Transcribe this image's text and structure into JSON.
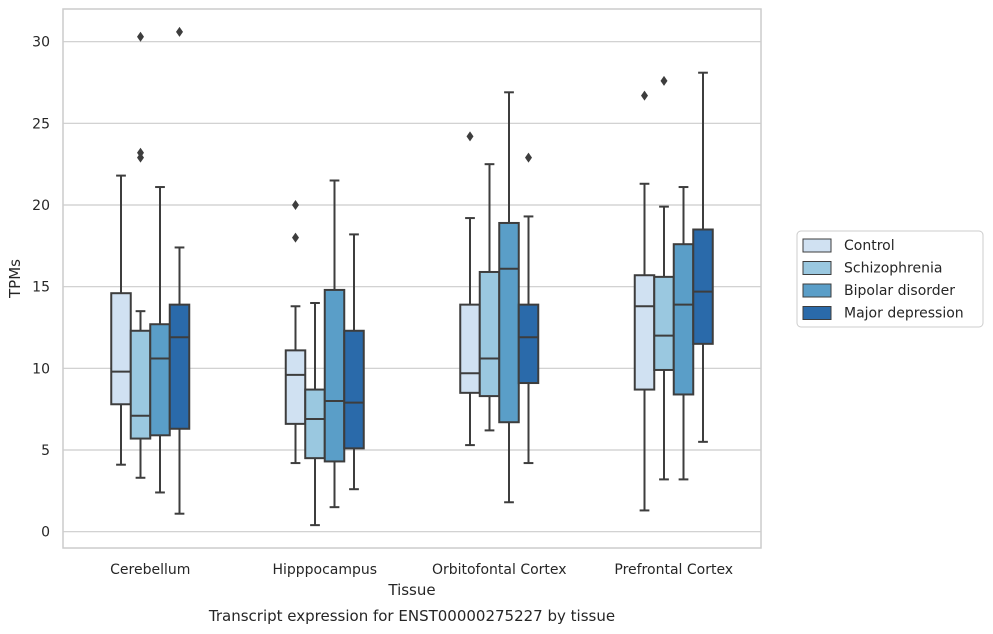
{
  "chart_data": {
    "type": "boxplot",
    "title": "",
    "caption": "Transcript expression for ENST00000275227 by tissue",
    "xlabel": "Tissue",
    "ylabel": "TPMs",
    "ylim": [
      -1,
      32
    ],
    "yticks": [
      0,
      5,
      10,
      15,
      20,
      25,
      30
    ],
    "grid": "horizontal",
    "legend_position": "right",
    "categories": [
      "Cerebellum",
      "Hipppocampus",
      "Orbitofontal Cortex",
      "Prefrontal Cortex"
    ],
    "series": [
      {
        "name": "Control",
        "color": "#d0e1f2",
        "boxes": [
          {
            "whislo": 4.1,
            "q1": 7.8,
            "med": 9.8,
            "q3": 14.6,
            "whishi": 21.8,
            "fliers": []
          },
          {
            "whislo": 4.2,
            "q1": 6.6,
            "med": 9.6,
            "q3": 11.1,
            "whishi": 13.8,
            "fliers": [
              18.0,
              20.0
            ]
          },
          {
            "whislo": 5.3,
            "q1": 8.5,
            "med": 9.7,
            "q3": 13.9,
            "whishi": 19.2,
            "fliers": [
              24.2
            ]
          },
          {
            "whislo": 1.3,
            "q1": 8.7,
            "med": 13.8,
            "q3": 15.7,
            "whishi": 21.3,
            "fliers": [
              26.7
            ]
          }
        ]
      },
      {
        "name": "Schizophrenia",
        "color": "#9ac8e0",
        "boxes": [
          {
            "whislo": 3.3,
            "q1": 5.7,
            "med": 7.1,
            "q3": 12.3,
            "whishi": 13.5,
            "fliers": [
              22.9,
              23.2,
              30.3
            ]
          },
          {
            "whislo": 0.4,
            "q1": 4.5,
            "med": 6.9,
            "q3": 8.7,
            "whishi": 14.0,
            "fliers": []
          },
          {
            "whislo": 6.2,
            "q1": 8.3,
            "med": 10.6,
            "q3": 15.9,
            "whishi": 22.5,
            "fliers": []
          },
          {
            "whislo": 3.2,
            "q1": 9.9,
            "med": 12.0,
            "q3": 15.6,
            "whishi": 19.9,
            "fliers": [
              27.6
            ]
          }
        ]
      },
      {
        "name": "Bipolar disorder",
        "color": "#5a9ec8",
        "boxes": [
          {
            "whislo": 2.4,
            "q1": 5.9,
            "med": 10.6,
            "q3": 12.7,
            "whishi": 21.1,
            "fliers": []
          },
          {
            "whislo": 1.5,
            "q1": 4.3,
            "med": 8.0,
            "q3": 14.8,
            "whishi": 21.5,
            "fliers": []
          },
          {
            "whislo": 1.8,
            "q1": 6.7,
            "med": 16.1,
            "q3": 18.9,
            "whishi": 26.9,
            "fliers": []
          },
          {
            "whislo": 3.2,
            "q1": 8.4,
            "med": 13.9,
            "q3": 17.6,
            "whishi": 21.1,
            "fliers": []
          }
        ]
      },
      {
        "name": "Major depression",
        "color": "#2a6aaa",
        "boxes": [
          {
            "whislo": 1.1,
            "q1": 6.3,
            "med": 11.9,
            "q3": 13.9,
            "whishi": 17.4,
            "fliers": [
              30.6
            ]
          },
          {
            "whislo": 2.6,
            "q1": 5.1,
            "med": 7.9,
            "q3": 12.3,
            "whishi": 18.2,
            "fliers": []
          },
          {
            "whislo": 4.2,
            "q1": 9.1,
            "med": 11.9,
            "q3": 13.9,
            "whishi": 19.3,
            "fliers": [
              22.9
            ]
          },
          {
            "whislo": 5.5,
            "q1": 11.5,
            "med": 14.7,
            "q3": 18.5,
            "whishi": 28.1,
            "fliers": []
          }
        ]
      }
    ]
  }
}
